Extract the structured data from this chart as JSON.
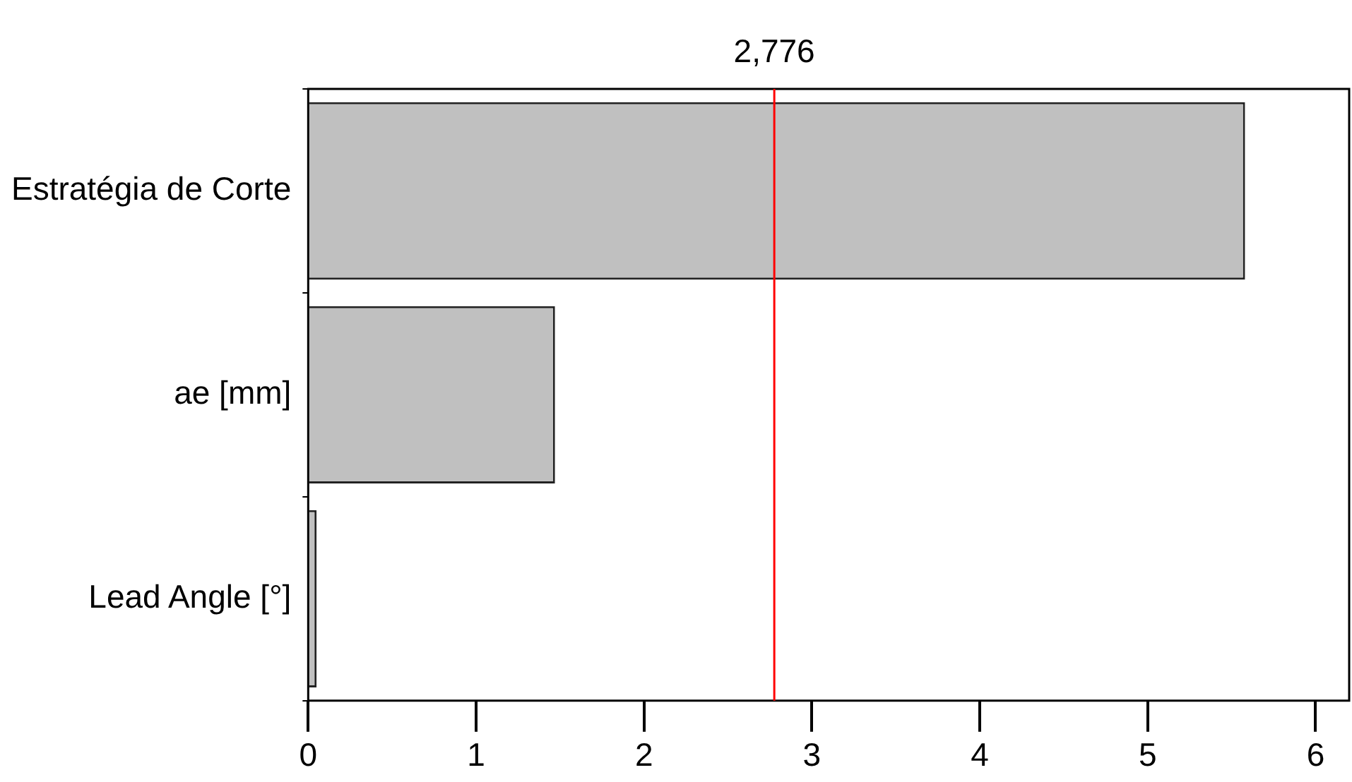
{
  "chart_data": {
    "type": "bar",
    "orientation": "horizontal",
    "categories": [
      "Estratégia de Corte",
      "ae [mm]",
      "Lead Angle [°]"
    ],
    "values": [
      5.58,
      1.47,
      0.05
    ],
    "color": "#c0c0c0",
    "xlim": [
      0,
      6.2
    ],
    "xticks": [
      0,
      1,
      2,
      3,
      4,
      5,
      6
    ],
    "grid": false,
    "legend": false,
    "ref_lines": [
      {
        "axis": "x",
        "value": 2.776,
        "label": "2,776",
        "color": "#ff0000"
      }
    ]
  }
}
